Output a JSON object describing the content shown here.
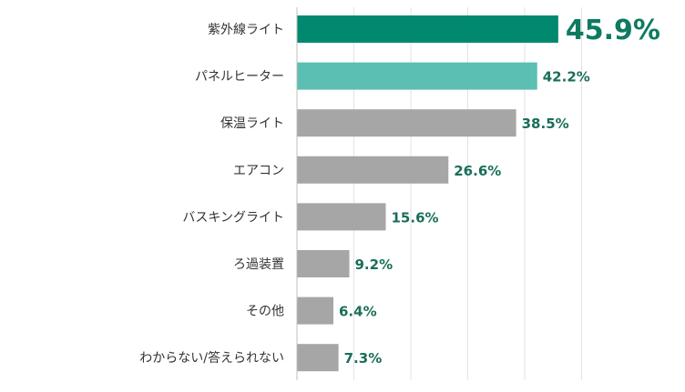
{
  "chart_data": {
    "type": "bar",
    "orientation": "horizontal",
    "categories": [
      "紫外線ライト",
      "パネルヒーター",
      "保温ライト",
      "エアコン",
      "バスキングライト",
      "ろ過装置",
      "その他",
      "わからない/答えられない"
    ],
    "values": [
      45.9,
      42.2,
      38.5,
      26.6,
      15.6,
      9.2,
      6.4,
      7.3
    ],
    "value_labels": [
      "45.9%",
      "42.2%",
      "38.5%",
      "26.6%",
      "15.6%",
      "9.2%",
      "6.4%",
      "7.3%"
    ],
    "bar_colors": [
      "#00896f",
      "#5bbfb3",
      "#a6a6a6",
      "#a6a6a6",
      "#a6a6a6",
      "#a6a6a6",
      "#a6a6a6",
      "#a6a6a6"
    ],
    "label_color": "#1a6e5a",
    "highlight_label_color": "#0e7a62",
    "xlim": [
      0,
      50
    ],
    "grid": true,
    "title": "",
    "xlabel": "",
    "ylabel": ""
  }
}
